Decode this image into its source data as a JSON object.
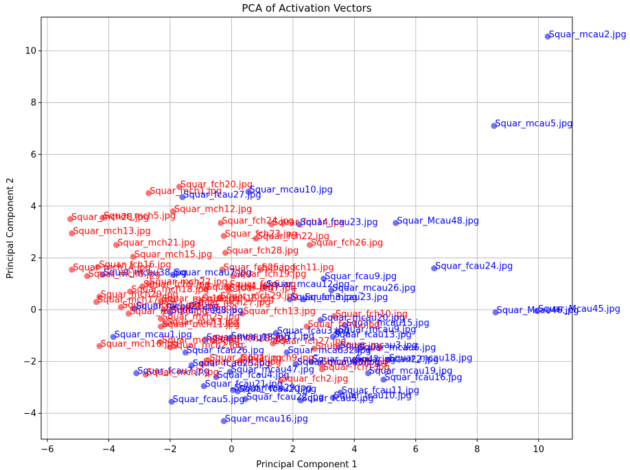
{
  "chart_data": {
    "type": "scatter",
    "title": "PCA of Activation Vectors",
    "xlabel": "Principal Component 1",
    "ylabel": "Principal Component 2",
    "xlim": [
      -6.2,
      11.1
    ],
    "ylim": [
      -5.0,
      11.3
    ],
    "xticks": [
      -6,
      -4,
      -2,
      0,
      2,
      4,
      6,
      8,
      10
    ],
    "yticks": [
      -4,
      -2,
      0,
      2,
      4,
      6,
      8,
      10
    ],
    "grid": true,
    "colors": {
      "red": "#ff0000",
      "blue": "#0000ff"
    },
    "points": [
      {
        "label": "Squar_mcau2.jpg",
        "x": 10.3,
        "y": 10.55,
        "c": "blue"
      },
      {
        "label": "Squar_mcau5.jpg",
        "x": 8.55,
        "y": 7.1,
        "c": "blue"
      },
      {
        "label": "Squar_fch20.jpg",
        "x": -1.7,
        "y": 4.75,
        "c": "red"
      },
      {
        "label": "Squar_mch1.jpg",
        "x": -2.7,
        "y": 4.5,
        "c": "red"
      },
      {
        "label": "Squar_mcau10.jpg",
        "x": 0.55,
        "y": 4.55,
        "c": "blue"
      },
      {
        "label": "Squar_fcau27.jpg",
        "x": -1.6,
        "y": 4.35,
        "c": "blue"
      },
      {
        "label": "Squar_mch12.jpg",
        "x": -1.9,
        "y": 3.8,
        "c": "red"
      },
      {
        "label": "Squar_mch28.jpg",
        "x": -5.25,
        "y": 3.5,
        "c": "red"
      },
      {
        "label": "Squar_mch5.jpg",
        "x": -4.2,
        "y": 3.55,
        "c": "red"
      },
      {
        "label": "Squar_fch24.jpg",
        "x": -0.35,
        "y": 3.35,
        "c": "red"
      },
      {
        "label": "Squar_fch14.jpg",
        "x": 1.3,
        "y": 3.3,
        "c": "red"
      },
      {
        "label": "Squar_fcau23.jpg",
        "x": 2.2,
        "y": 3.3,
        "c": "blue"
      },
      {
        "label": "Squar_Mcau48.jpg",
        "x": 5.35,
        "y": 3.35,
        "c": "blue"
      },
      {
        "label": "Squar_mch13.jpg",
        "x": -5.2,
        "y": 2.95,
        "c": "red"
      },
      {
        "label": "Squar_fch23.jpg",
        "x": -0.25,
        "y": 2.85,
        "c": "red"
      },
      {
        "label": "Squar_fch22.jpg",
        "x": 0.8,
        "y": 2.75,
        "c": "red"
      },
      {
        "label": "Squar_fch26.jpg",
        "x": 2.55,
        "y": 2.5,
        "c": "red"
      },
      {
        "label": "Squar_mch21.jpg",
        "x": -3.75,
        "y": 2.5,
        "c": "red"
      },
      {
        "label": "Squar_fch28.jpg",
        "x": -0.2,
        "y": 2.2,
        "c": "red"
      },
      {
        "label": "Squar_mch15.jpg",
        "x": -3.2,
        "y": 2.05,
        "c": "red"
      },
      {
        "label": "Squar_fcau24.jpg",
        "x": 6.6,
        "y": 1.6,
        "c": "blue"
      },
      {
        "label": "Squar_fch16.jpg",
        "x": -4.35,
        "y": 1.65,
        "c": "red"
      },
      {
        "label": "Squar_mch14.jpg",
        "x": -5.2,
        "y": 1.55,
        "c": "red"
      },
      {
        "label": "Squar_fch25.jpg",
        "x": -0.3,
        "y": 1.55,
        "c": "red"
      },
      {
        "label": "Squar_fch11.jpg",
        "x": 0.95,
        "y": 1.55,
        "c": "red"
      },
      {
        "label": "Squar_mcau38.jpg",
        "x": -4.2,
        "y": 1.35,
        "c": "blue"
      },
      {
        "label": "Squar_mch8.jpg",
        "x": -4.7,
        "y": 1.3,
        "c": "red"
      },
      {
        "label": "Squar_mcau7.jpg",
        "x": -1.9,
        "y": 1.35,
        "c": "blue"
      },
      {
        "label": "Squar_fch19.jpg",
        "x": 0.05,
        "y": 1.3,
        "c": "red"
      },
      {
        "label": "Squar_fcau9.jpg",
        "x": 3.0,
        "y": 1.2,
        "c": "blue"
      },
      {
        "label": "Squar_mch22.jpg",
        "x": -2.7,
        "y": 1.0,
        "c": "red"
      },
      {
        "label": "Squar_fch9.jpg",
        "x": -2.9,
        "y": 0.9,
        "c": "red"
      },
      {
        "label": "Squar_fch6.jpg",
        "x": -0.1,
        "y": 0.9,
        "c": "red"
      },
      {
        "label": "Squar_mcau12.jpg",
        "x": 1.1,
        "y": 0.9,
        "c": "blue"
      },
      {
        "label": "Squar_mcau26.jpg",
        "x": 3.25,
        "y": 0.75,
        "c": "blue"
      },
      {
        "label": "Squar_mch18.jpg",
        "x": -3.3,
        "y": 0.7,
        "c": "red"
      },
      {
        "label": "Squar_fch4.jpg",
        "x": -0.85,
        "y": 0.8,
        "c": "red"
      },
      {
        "label": "Squar_fch7.jpg",
        "x": -0.1,
        "y": 0.75,
        "c": "red"
      },
      {
        "label": "Squar_mch20.jpg",
        "x": -4.3,
        "y": 0.5,
        "c": "red"
      },
      {
        "label": "Squar_mch29.jpg",
        "x": -0.4,
        "y": 0.45,
        "c": "red"
      },
      {
        "label": "Squar_mcau23.jpg",
        "x": 2.35,
        "y": 0.4,
        "c": "blue"
      },
      {
        "label": "Squar_fch3.jpg",
        "x": 1.9,
        "y": 0.4,
        "c": "blue"
      },
      {
        "label": "Squar_mch17.jpg",
        "x": -4.4,
        "y": 0.3,
        "c": "red"
      },
      {
        "label": "Squar_mch19.jpg",
        "x": -2.3,
        "y": 0.35,
        "c": "red"
      },
      {
        "label": "Squar_fch15.jpg",
        "x": -1.0,
        "y": 0.35,
        "c": "red"
      },
      {
        "label": "Squar_mch27.jpg",
        "x": -1.3,
        "y": 0.2,
        "c": "red"
      },
      {
        "label": "Squar_mch24.jpg",
        "x": -3.6,
        "y": 0.1,
        "c": "red"
      },
      {
        "label": "Squar_mcau21.jpg",
        "x": -3.15,
        "y": 0.05,
        "c": "blue"
      },
      {
        "label": "Squar_mch6.jpg",
        "x": -2.2,
        "y": 0.0,
        "c": "red"
      },
      {
        "label": "Squar_fcau8.jpg",
        "x": -2.0,
        "y": -0.1,
        "c": "blue"
      },
      {
        "label": "Squar_mch10.jpg",
        "x": -3.35,
        "y": -0.15,
        "c": "red"
      },
      {
        "label": "Squar_fch13.jpg",
        "x": 0.35,
        "y": -0.15,
        "c": "red"
      },
      {
        "label": "Squar_Mcau46.jpg",
        "x": 8.6,
        "y": -0.1,
        "c": "blue"
      },
      {
        "label": "Squar_Mcau45.jpg",
        "x": 9.95,
        "y": -0.05,
        "c": "blue"
      },
      {
        "label": "Squar_fch10.jpg",
        "x": 3.35,
        "y": -0.25,
        "c": "red"
      },
      {
        "label": "Squar_mch25.jpg",
        "x": -2.3,
        "y": -0.35,
        "c": "red"
      },
      {
        "label": "Squar_mcau20.jpg",
        "x": 2.9,
        "y": -0.4,
        "c": "blue"
      },
      {
        "label": "Squar_mch3.jpg",
        "x": -2.15,
        "y": -0.55,
        "c": "red"
      },
      {
        "label": "Squar_mcau15.jpg",
        "x": 3.7,
        "y": -0.6,
        "c": "blue"
      },
      {
        "label": "Squar_mch11.jpg",
        "x": -2.3,
        "y": -0.65,
        "c": "red"
      },
      {
        "label": "Squar_fch12.jpg",
        "x": 2.45,
        "y": -0.65,
        "c": "red"
      },
      {
        "label": "Squar_mcau9.jpg",
        "x": 3.45,
        "y": -0.85,
        "c": "blue"
      },
      {
        "label": "Squar_fcau3.jpg",
        "x": 1.45,
        "y": -0.9,
        "c": "blue"
      },
      {
        "label": "Squar_fcau13.jpg",
        "x": 3.3,
        "y": -1.05,
        "c": "blue"
      },
      {
        "label": "Squar_mcau1.jpg",
        "x": -3.85,
        "y": -1.05,
        "c": "blue"
      },
      {
        "label": "Squar_mcau11.jpg",
        "x": -0.05,
        "y": -1.1,
        "c": "blue"
      },
      {
        "label": "Squar_mcau13.jpg",
        "x": -0.85,
        "y": -1.15,
        "c": "blue"
      },
      {
        "label": "Squar_fch18.jpg",
        "x": -0.6,
        "y": -1.2,
        "c": "red"
      },
      {
        "label": "Squar_fch27.jpg",
        "x": 1.35,
        "y": -1.3,
        "c": "red"
      },
      {
        "label": "Squar_mch16.jpg",
        "x": -4.3,
        "y": -1.4,
        "c": "red"
      },
      {
        "label": "Squar_mch2.jpg",
        "x": -2.0,
        "y": -1.45,
        "c": "red"
      },
      {
        "label": "Squar_mch23.jpg",
        "x": -2.3,
        "y": -1.25,
        "c": "red"
      },
      {
        "label": "Squar_mcau3.jpg",
        "x": 3.5,
        "y": -1.45,
        "c": "blue"
      },
      {
        "label": "Squar_fch8.jpg",
        "x": 2.7,
        "y": -1.5,
        "c": "red"
      },
      {
        "label": "Squar_fcau26.jpg",
        "x": -1.5,
        "y": -1.65,
        "c": "blue"
      },
      {
        "label": "Squar_mcau32.jpg",
        "x": 1.8,
        "y": -1.65,
        "c": "blue"
      },
      {
        "label": "Squar_mcau6.jpg",
        "x": 4.1,
        "y": -1.55,
        "c": "blue"
      },
      {
        "label": "Squar_fch21.jpg",
        "x": -0.75,
        "y": -1.95,
        "c": "red"
      },
      {
        "label": "Squar_mch9.jpg",
        "x": 0.3,
        "y": -1.95,
        "c": "red"
      },
      {
        "label": "Squar_mcau42.jpg",
        "x": 2.6,
        "y": -2.0,
        "c": "blue"
      },
      {
        "label": "Squar_mcau18.jpg",
        "x": 5.1,
        "y": -1.95,
        "c": "blue"
      },
      {
        "label": "Squar_mcau22.jpg",
        "x": 4.0,
        "y": -2.0,
        "c": "blue"
      },
      {
        "label": "Squar_mch26.jpg",
        "x": -0.95,
        "y": -2.1,
        "c": "red"
      },
      {
        "label": "Squar_fch5.jpg",
        "x": 2.9,
        "y": -2.1,
        "c": "red"
      },
      {
        "label": "Squar_fcau25.jpg",
        "x": -1.3,
        "y": -2.15,
        "c": "blue"
      },
      {
        "label": "Squar_mcau40.jpg",
        "x": 2.1,
        "y": -2.1,
        "c": "blue"
      },
      {
        "label": "Squar_fch1.jpg",
        "x": 2.95,
        "y": -2.3,
        "c": "red"
      },
      {
        "label": "Squar_fcau7.jpg",
        "x": -3.1,
        "y": -2.45,
        "c": "blue"
      },
      {
        "label": "Squar_mch7.jpg",
        "x": -2.8,
        "y": -2.5,
        "c": "red"
      },
      {
        "label": "Squar_mcau47.jpg",
        "x": -0.05,
        "y": -2.4,
        "c": "blue"
      },
      {
        "label": "Squar_mcau19.jpg",
        "x": 4.45,
        "y": -2.45,
        "c": "blue"
      },
      {
        "label": "Squar_fcau4.jpg",
        "x": -0.5,
        "y": -2.6,
        "c": "blue"
      },
      {
        "label": "Squar_fcau16.jpg",
        "x": 4.95,
        "y": -2.7,
        "c": "blue"
      },
      {
        "label": "Squar_fch2.jpg",
        "x": 1.6,
        "y": -2.75,
        "c": "red"
      },
      {
        "label": "Squar_fcau21.jpg",
        "x": -0.9,
        "y": -2.95,
        "c": "blue"
      },
      {
        "label": "Squar_fcau29.jpg",
        "x": 0.05,
        "y": -3.1,
        "c": "blue"
      },
      {
        "label": "Squar_fcau20.jpg",
        "x": 0.2,
        "y": -3.15,
        "c": "blue"
      },
      {
        "label": "Squar_fcau11.jpg",
        "x": 3.55,
        "y": -3.2,
        "c": "blue"
      },
      {
        "label": "Squar_fcau22.jpg",
        "x": 0.45,
        "y": -3.45,
        "c": "blue"
      },
      {
        "label": "Squar_fcau10.jpg",
        "x": 3.3,
        "y": -3.4,
        "c": "blue"
      },
      {
        "label": "Squar_fcau5.jpg",
        "x": 2.25,
        "y": -3.5,
        "c": "blue"
      },
      {
        "label": "Squar_fcau5.jpg",
        "x": -1.95,
        "y": -3.55,
        "c": "blue"
      },
      {
        "label": "Squar_mcau16.jpg",
        "x": -0.25,
        "y": -4.3,
        "c": "blue"
      }
    ]
  }
}
